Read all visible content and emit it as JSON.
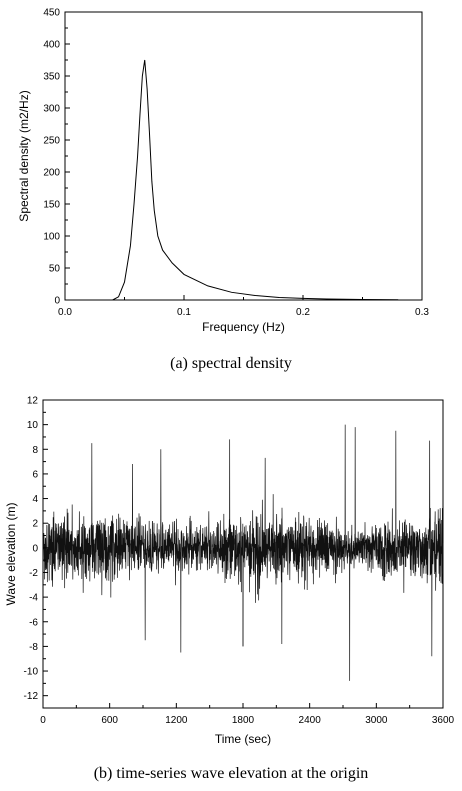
{
  "chart_data": [
    {
      "type": "line",
      "caption": "(a) spectral density",
      "xlabel": "Frequency (Hz)",
      "ylabel": "Spectral density (m2/Hz)",
      "xlim": [
        0,
        0.3
      ],
      "ylim": [
        0,
        450
      ],
      "xticks": [
        "0.0",
        "0.1",
        "0.2",
        "0.3"
      ],
      "yticks": [
        "0",
        "50",
        "100",
        "150",
        "200",
        "250",
        "300",
        "350",
        "400",
        "450"
      ],
      "x": [
        0.04,
        0.045,
        0.05,
        0.055,
        0.058,
        0.061,
        0.063,
        0.065,
        0.067,
        0.069,
        0.071,
        0.073,
        0.075,
        0.078,
        0.082,
        0.09,
        0.1,
        0.12,
        0.14,
        0.16,
        0.18,
        0.2,
        0.22,
        0.25,
        0.28
      ],
      "y": [
        0,
        5,
        28,
        85,
        150,
        225,
        290,
        350,
        375,
        330,
        260,
        185,
        140,
        100,
        78,
        58,
        40,
        22,
        12,
        7,
        4,
        2.5,
        1.5,
        0.8,
        0.4
      ]
    },
    {
      "type": "line",
      "caption": "(b) time-series wave elevation at the origin",
      "xlabel": "Time (sec)",
      "ylabel": "Wave elevation (m)",
      "xlim": [
        0,
        3600
      ],
      "ylim": [
        -13,
        12
      ],
      "xticks": [
        "0",
        "600",
        "1200",
        "1800",
        "2400",
        "3000",
        "3600"
      ],
      "yticks": [
        "-12",
        "-10",
        "-8",
        "-6",
        "-4",
        "-2",
        "0",
        "2",
        "4",
        "6",
        "8",
        "10",
        "12"
      ],
      "peaks": [
        {
          "t": 440,
          "v": 8.5
        },
        {
          "t": 805,
          "v": 6.8
        },
        {
          "t": 1060,
          "v": 8.0
        },
        {
          "t": 1240,
          "v": -8.5
        },
        {
          "t": 1680,
          "v": 8.8
        },
        {
          "t": 1800,
          "v": -8.0
        },
        {
          "t": 2000,
          "v": 7.3
        },
        {
          "t": 2720,
          "v": 10.0
        },
        {
          "t": 2760,
          "v": -10.8
        },
        {
          "t": 2810,
          "v": 9.8
        },
        {
          "t": 3175,
          "v": 9.5
        },
        {
          "t": 3480,
          "v": 8.7
        },
        {
          "t": 3500,
          "v": -8.8
        },
        {
          "t": 920,
          "v": -7.5
        },
        {
          "t": 2150,
          "v": -7.8
        }
      ]
    }
  ]
}
